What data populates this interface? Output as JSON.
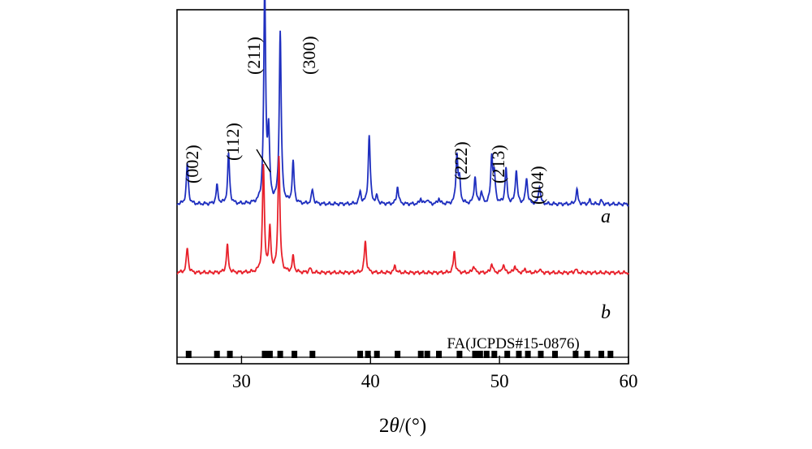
{
  "chart_data": {
    "type": "line",
    "xlabel_prefix": "2",
    "xlabel_theta": "θ",
    "xlabel_unit": "/(°)",
    "xlim": [
      25,
      60
    ],
    "x_ticks": [
      30,
      40,
      50,
      60
    ],
    "y_ticks_shown": false,
    "grid": false,
    "reference_label": "FA(JCPDS#15-0876)",
    "reference_peaks": [
      25.9,
      28.1,
      29.1,
      31.8,
      32.0,
      32.2,
      33.0,
      34.1,
      35.5,
      39.2,
      39.8,
      40.5,
      42.1,
      43.9,
      44.4,
      45.3,
      46.9,
      48.1,
      48.5,
      49.0,
      49.6,
      50.6,
      51.5,
      52.2,
      53.2,
      54.3,
      55.9,
      56.8,
      57.9,
      58.6
    ],
    "series": [
      {
        "name": "a",
        "color": "#1f2fbf",
        "baseline": 0.42,
        "peaks": [
          {
            "x": 25.8,
            "h": 0.57
          },
          {
            "x": 28.1,
            "h": 0.26
          },
          {
            "x": 29.0,
            "h": 0.71
          },
          {
            "x": 31.8,
            "h": 3.0
          },
          {
            "x": 32.1,
            "h": 0.95
          },
          {
            "x": 33.0,
            "h": 2.42
          },
          {
            "x": 34.0,
            "h": 0.58
          },
          {
            "x": 35.5,
            "h": 0.2
          },
          {
            "x": 39.2,
            "h": 0.17
          },
          {
            "x": 39.9,
            "h": 0.97
          },
          {
            "x": 40.5,
            "h": 0.1
          },
          {
            "x": 42.1,
            "h": 0.25
          },
          {
            "x": 43.9,
            "h": 0.08
          },
          {
            "x": 44.4,
            "h": 0.07
          },
          {
            "x": 45.3,
            "h": 0.08
          },
          {
            "x": 46.7,
            "h": 0.68
          },
          {
            "x": 46.9,
            "h": 0.3
          },
          {
            "x": 48.1,
            "h": 0.38
          },
          {
            "x": 48.6,
            "h": 0.16
          },
          {
            "x": 49.4,
            "h": 0.66
          },
          {
            "x": 49.6,
            "h": 0.38
          },
          {
            "x": 50.5,
            "h": 0.5
          },
          {
            "x": 51.3,
            "h": 0.48
          },
          {
            "x": 52.1,
            "h": 0.37
          },
          {
            "x": 53.1,
            "h": 0.26
          },
          {
            "x": 56.0,
            "h": 0.2
          },
          {
            "x": 57.0,
            "h": 0.05
          },
          {
            "x": 57.9,
            "h": 0.05
          }
        ]
      },
      {
        "name": "b",
        "color": "#e8202a",
        "baseline": -0.55,
        "peaks": [
          {
            "x": 25.8,
            "h": 0.35
          },
          {
            "x": 28.9,
            "h": 0.39
          },
          {
            "x": 31.7,
            "h": 1.5
          },
          {
            "x": 32.2,
            "h": 0.6
          },
          {
            "x": 32.9,
            "h": 1.65
          },
          {
            "x": 34.0,
            "h": 0.22
          },
          {
            "x": 35.3,
            "h": 0.06
          },
          {
            "x": 39.6,
            "h": 0.45
          },
          {
            "x": 41.9,
            "h": 0.1
          },
          {
            "x": 46.5,
            "h": 0.3
          },
          {
            "x": 48.0,
            "h": 0.1
          },
          {
            "x": 49.4,
            "h": 0.13
          },
          {
            "x": 50.3,
            "h": 0.12
          },
          {
            "x": 51.2,
            "h": 0.1
          },
          {
            "x": 52.0,
            "h": 0.05
          },
          {
            "x": 53.1,
            "h": 0.05
          },
          {
            "x": 55.9,
            "h": 0.05
          }
        ]
      }
    ],
    "annotations": [
      "(002)",
      "(112)",
      "(211)",
      "(300)",
      "(222)",
      "(213)",
      "(004)"
    ]
  }
}
